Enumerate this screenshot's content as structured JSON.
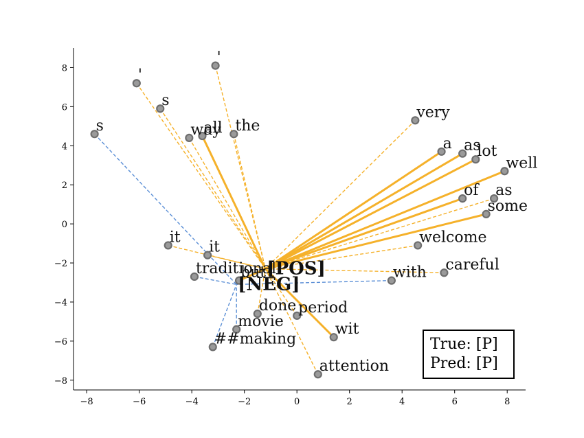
{
  "chart_data": {
    "type": "scatter",
    "title": "",
    "xlabel": "",
    "ylabel": "",
    "xlim": [
      -8.5,
      8.7
    ],
    "ylim": [
      -8.5,
      9.0
    ],
    "xticks": [
      -8,
      -6,
      -4,
      -2,
      0,
      2,
      4,
      6,
      8
    ],
    "yticks": [
      -8,
      -6,
      -4,
      -2,
      0,
      2,
      4,
      6,
      8
    ],
    "xtick_labels": [
      "−8",
      "−6",
      "−4",
      "−2",
      "0",
      "2",
      "4",
      "6",
      "8"
    ],
    "ytick_labels": [
      "−8",
      "−6",
      "−4",
      "−2",
      "0",
      "2",
      "4",
      "6",
      "8"
    ],
    "grid": false,
    "colors": {
      "pos": "#f5b12a",
      "neg": "#5b8fd6",
      "point_edge": "#6e6e6e"
    },
    "class_points": [
      {
        "label": "[POS]",
        "x": -1.2,
        "y": -2.3
      },
      {
        "label": "[NEG]",
        "x": -2.3,
        "y": -3.1
      }
    ],
    "tokens": [
      {
        "text": "'",
        "x": -3.1,
        "y": 8.1,
        "link": "pos",
        "style": "dashed"
      },
      {
        "text": "'",
        "x": -6.1,
        "y": 7.2,
        "link": "pos",
        "style": "dashed"
      },
      {
        "text": "s",
        "x": -5.2,
        "y": 5.9,
        "link": "pos",
        "style": "dashed"
      },
      {
        "text": "s",
        "x": -7.7,
        "y": 4.6,
        "link": "neg",
        "style": "dashed"
      },
      {
        "text": "way",
        "x": -4.1,
        "y": 4.4,
        "link": "pos",
        "style": "dashed"
      },
      {
        "text": "all",
        "x": -3.6,
        "y": 4.5,
        "link": "pos",
        "style": "solid"
      },
      {
        "text": "the",
        "x": -2.4,
        "y": 4.6,
        "link": "pos",
        "style": "dashed"
      },
      {
        "text": "very",
        "x": 4.5,
        "y": 5.3,
        "link": "pos",
        "style": "dashed"
      },
      {
        "text": "a",
        "x": 5.5,
        "y": 3.7,
        "link": "pos",
        "style": "solid"
      },
      {
        "text": "as",
        "x": 6.3,
        "y": 3.6,
        "link": "pos",
        "style": "solid"
      },
      {
        "text": "lot",
        "x": 6.8,
        "y": 3.3,
        "link": "pos",
        "style": "solid"
      },
      {
        "text": "well",
        "x": 7.9,
        "y": 2.7,
        "link": "pos",
        "style": "solid"
      },
      {
        "text": "of",
        "x": 6.3,
        "y": 1.3,
        "link": "pos",
        "style": "solid"
      },
      {
        "text": "as",
        "x": 7.5,
        "y": 1.3,
        "link": "pos",
        "style": "dashed"
      },
      {
        "text": "some",
        "x": 7.2,
        "y": 0.5,
        "link": "pos",
        "style": "solid"
      },
      {
        "text": "welcome",
        "x": 4.6,
        "y": -1.1,
        "link": "pos",
        "style": "dashed"
      },
      {
        "text": "careful",
        "x": 5.6,
        "y": -2.5,
        "link": "pos",
        "style": "dashed"
      },
      {
        "text": "with",
        "x": 3.6,
        "y": -2.9,
        "link": "neg",
        "style": "dashed"
      },
      {
        "text": "it",
        "x": -4.9,
        "y": -1.1,
        "link": "pos",
        "style": "dashed"
      },
      {
        "text": "it",
        "x": -3.4,
        "y": -1.6,
        "link": "pos",
        "style": "dashed"
      },
      {
        "text": "traditional",
        "x": -3.9,
        "y": -2.7,
        "link": "neg",
        "style": "dashed"
      },
      {
        "text": "but",
        "x": -2.2,
        "y": -2.9,
        "link": "pos",
        "style": "solid"
      },
      {
        "text": "done",
        "x": -1.5,
        "y": -4.6,
        "link": "pos",
        "style": "dashed"
      },
      {
        "text": "period",
        "x": 0.0,
        "y": -4.7,
        "link": "pos",
        "style": "dashed"
      },
      {
        "text": "movie",
        "x": -2.3,
        "y": -5.4,
        "link": "neg",
        "style": "dashed"
      },
      {
        "text": "wit",
        "x": 1.4,
        "y": -5.8,
        "link": "pos",
        "style": "solid"
      },
      {
        "text": "##making",
        "x": -3.2,
        "y": -6.3,
        "link": "neg",
        "style": "dashed"
      },
      {
        "text": "attention",
        "x": 0.8,
        "y": -7.7,
        "link": "pos",
        "style": "dashed"
      }
    ],
    "legend": {
      "true_label": "True: [P]",
      "pred_label": "Pred: [P]",
      "position": "lower-right"
    }
  }
}
